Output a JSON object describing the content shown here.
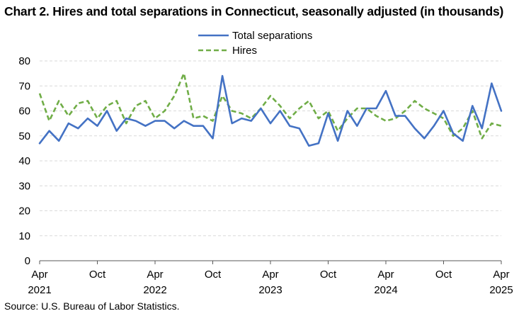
{
  "title": "Chart 2. Hires and total separations in Connecticut, seasonally adjusted (in thousands)",
  "source": "Source: U.S. Bureau of Labor Statistics.",
  "chart_data": {
    "type": "line",
    "title": "Chart 2. Hires and total separations in Connecticut, seasonally adjusted (in thousands)",
    "xlabel": "",
    "ylabel": "",
    "ylim": [
      0,
      80
    ],
    "yticks": [
      0,
      10,
      20,
      30,
      40,
      50,
      60,
      70,
      80
    ],
    "grid": true,
    "legend_position": "top-center",
    "x_tick_labels": [
      {
        "month": "Apr",
        "year": "2021",
        "index": 0
      },
      {
        "month": "Oct",
        "year": "",
        "index": 6
      },
      {
        "month": "Apr",
        "year": "2022",
        "index": 12
      },
      {
        "month": "Oct",
        "year": "",
        "index": 18
      },
      {
        "month": "Apr",
        "year": "2023",
        "index": 24
      },
      {
        "month": "Oct",
        "year": "",
        "index": 30
      },
      {
        "month": "Apr",
        "year": "2024",
        "index": 36
      },
      {
        "month": "Oct",
        "year": "",
        "index": 42
      },
      {
        "month": "Apr",
        "year": "2025",
        "index": 48
      }
    ],
    "x": [
      "2021-04",
      "2021-05",
      "2021-06",
      "2021-07",
      "2021-08",
      "2021-09",
      "2021-10",
      "2021-11",
      "2021-12",
      "2022-01",
      "2022-02",
      "2022-03",
      "2022-04",
      "2022-05",
      "2022-06",
      "2022-07",
      "2022-08",
      "2022-09",
      "2022-10",
      "2022-11",
      "2022-12",
      "2023-01",
      "2023-02",
      "2023-03",
      "2023-04",
      "2023-05",
      "2023-06",
      "2023-07",
      "2023-08",
      "2023-09",
      "2023-10",
      "2023-11",
      "2023-12",
      "2024-01",
      "2024-02",
      "2024-03",
      "2024-04",
      "2024-05",
      "2024-06",
      "2024-07",
      "2024-08",
      "2024-09",
      "2024-10",
      "2024-11",
      "2024-12",
      "2025-01",
      "2025-02",
      "2025-03",
      "2025-04"
    ],
    "series": [
      {
        "name": "Total separations",
        "color": "#4472C4",
        "style": "solid",
        "values": [
          47,
          52,
          48,
          55,
          53,
          57,
          54,
          60,
          52,
          57,
          56,
          54,
          56,
          56,
          53,
          56,
          54,
          54,
          49,
          74,
          55,
          57,
          56,
          61,
          55,
          60,
          54,
          53,
          46,
          47,
          59,
          48,
          60,
          54,
          61,
          61,
          68,
          58,
          58,
          53,
          49,
          54,
          60,
          51,
          48,
          62,
          53,
          71,
          60
        ]
      },
      {
        "name": "Hires",
        "color": "#70AD47",
        "style": "dashed",
        "values": [
          67,
          56,
          64,
          58,
          63,
          64,
          57,
          62,
          64,
          55,
          62,
          64,
          57,
          60,
          66,
          75,
          57,
          58,
          56,
          66,
          60,
          59,
          57,
          61,
          66,
          62,
          57,
          61,
          64,
          57,
          60,
          52,
          57,
          61,
          61,
          58,
          56,
          57,
          60,
          64,
          61,
          59,
          57,
          50,
          53,
          60,
          49,
          55,
          54
        ]
      }
    ]
  }
}
